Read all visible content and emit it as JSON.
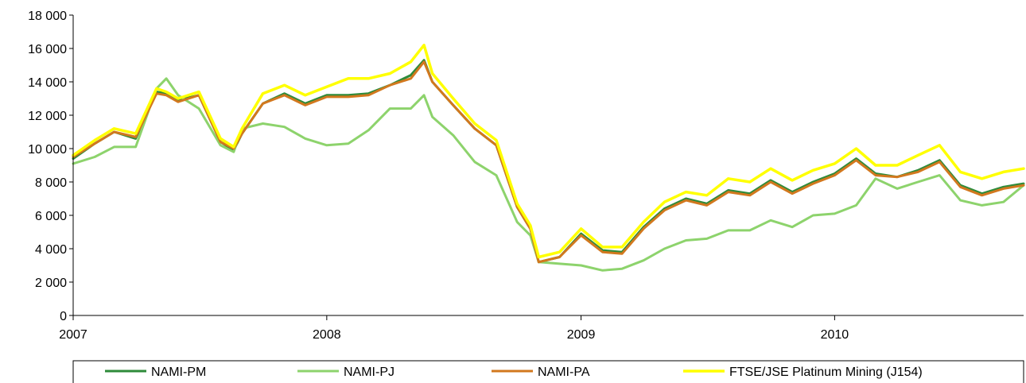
{
  "chart_data": {
    "type": "line",
    "title": "",
    "xlabel": "",
    "ylabel": "",
    "x_ticks": [
      "2007",
      "2008",
      "2009",
      "2010"
    ],
    "y_ticks": [
      "0",
      "2 000",
      "4 000",
      "6 000",
      "8 000",
      "10 000",
      "12 000",
      "14 000",
      "16 000",
      "18 000"
    ],
    "xlim": [
      "2007-01-01",
      "2010-09-30"
    ],
    "ylim": [
      0,
      18000
    ],
    "grid": false,
    "legend_position": "bottom",
    "x": [
      "2007-01-01",
      "2007-02-01",
      "2007-03-01",
      "2007-04-01",
      "2007-05-01",
      "2007-05-15",
      "2007-06-01",
      "2007-07-01",
      "2007-08-01",
      "2007-08-20",
      "2007-09-01",
      "2007-10-01",
      "2007-11-01",
      "2007-12-01",
      "2008-01-01",
      "2008-02-01",
      "2008-03-01",
      "2008-04-01",
      "2008-05-01",
      "2008-05-20",
      "2008-06-01",
      "2008-07-01",
      "2008-08-01",
      "2008-09-01",
      "2008-10-01",
      "2008-10-20",
      "2008-11-01",
      "2008-12-01",
      "2009-01-01",
      "2009-02-01",
      "2009-03-01",
      "2009-04-01",
      "2009-05-01",
      "2009-06-01",
      "2009-07-01",
      "2009-08-01",
      "2009-09-01",
      "2009-10-01",
      "2009-11-01",
      "2009-12-01",
      "2010-01-01",
      "2010-02-01",
      "2010-03-01",
      "2010-04-01",
      "2010-05-01",
      "2010-06-01",
      "2010-07-01",
      "2010-08-01",
      "2010-09-01",
      "2010-09-30"
    ],
    "series": [
      {
        "name": "NAMI-PM",
        "color": "#2E8B3A",
        "width": 3,
        "values": [
          9400,
          10300,
          11000,
          10600,
          13400,
          13300,
          12900,
          13200,
          10400,
          9900,
          10900,
          12700,
          13300,
          12700,
          13200,
          13200,
          13300,
          13800,
          14400,
          15300,
          14000,
          12600,
          11200,
          10200,
          6500,
          5200,
          3200,
          3500,
          4900,
          3900,
          3800,
          5300,
          6400,
          7000,
          6700,
          7500,
          7300,
          8100,
          7400,
          8000,
          8500,
          9400,
          8500,
          8300,
          8700,
          9300,
          7800,
          7300,
          7700,
          7900
        ]
      },
      {
        "name": "NAMI-PJ",
        "color": "#8DD36C",
        "width": 3,
        "values": [
          9100,
          9500,
          10100,
          10100,
          13600,
          14200,
          13200,
          12400,
          10200,
          9800,
          11200,
          11500,
          11300,
          10600,
          10200,
          10300,
          11100,
          12400,
          12400,
          13200,
          11900,
          10800,
          9200,
          8400,
          5600,
          4800,
          3200,
          3100,
          3000,
          2700,
          2800,
          3300,
          4000,
          4500,
          4600,
          5100,
          5100,
          5700,
          5300,
          6000,
          6100,
          6600,
          8200,
          7600,
          8000,
          8400,
          6900,
          6600,
          6800,
          7800
        ]
      },
      {
        "name": "NAMI-PA",
        "color": "#D2781E",
        "width": 3,
        "values": [
          9500,
          10300,
          11000,
          10700,
          13300,
          13200,
          12800,
          13200,
          10400,
          10000,
          10900,
          12700,
          13200,
          12600,
          13100,
          13100,
          13200,
          13800,
          14200,
          15200,
          14000,
          12600,
          11200,
          10200,
          6500,
          5200,
          3200,
          3500,
          4800,
          3800,
          3700,
          5200,
          6300,
          6900,
          6600,
          7400,
          7200,
          8000,
          7300,
          7900,
          8400,
          9300,
          8400,
          8300,
          8600,
          9200,
          7700,
          7200,
          7600,
          7800
        ]
      },
      {
        "name": "FTSE/JSE Platinum Mining (J154)",
        "color": "#FFFF00",
        "width": 3.5,
        "values": [
          9600,
          10500,
          11200,
          10900,
          13600,
          13400,
          13000,
          13400,
          10600,
          10100,
          11200,
          13300,
          13800,
          13200,
          13700,
          14200,
          14200,
          14500,
          15200,
          16200,
          14500,
          13000,
          11500,
          10500,
          6700,
          5400,
          3500,
          3800,
          5200,
          4100,
          4100,
          5600,
          6800,
          7400,
          7200,
          8200,
          8000,
          8800,
          8100,
          8700,
          9100,
          10000,
          9000,
          9000,
          9600,
          10200,
          8600,
          8200,
          8600,
          8800
        ]
      }
    ]
  }
}
